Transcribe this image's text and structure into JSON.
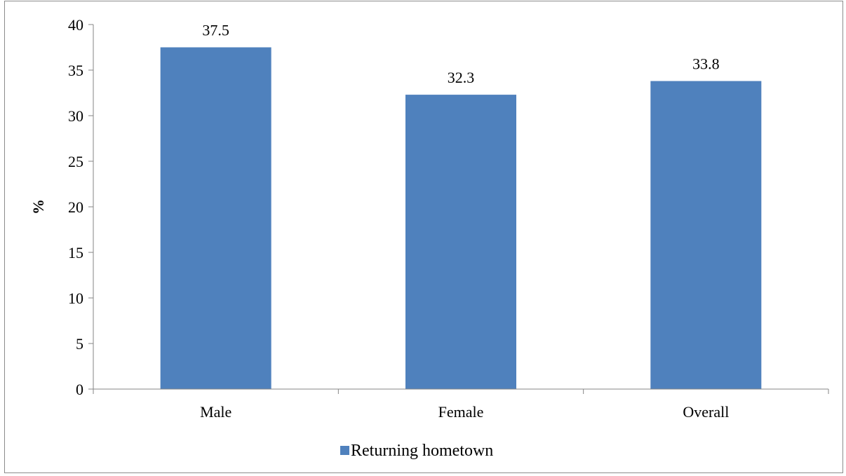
{
  "chart_data": {
    "type": "bar",
    "categories": [
      "Male",
      "Female",
      "Overall"
    ],
    "series": [
      {
        "name": "Returning hometown",
        "values": [
          37.5,
          32.3,
          33.8
        ]
      }
    ],
    "data_labels": [
      "37.5",
      "32.3",
      "33.8"
    ],
    "title": "",
    "xlabel": "",
    "ylabel": "%",
    "ylim": [
      0,
      40
    ],
    "yticks": [
      0,
      5,
      10,
      15,
      20,
      25,
      30,
      35,
      40
    ],
    "grid": false,
    "legend_position": "bottom",
    "bar_color": "#4f81bd"
  }
}
